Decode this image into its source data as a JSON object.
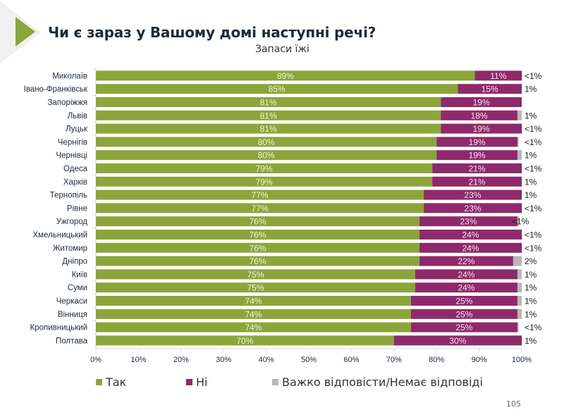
{
  "header": {
    "title": "Чи є зараз у Вашому домі наступні речі?",
    "subtitle": "Запаси їжі"
  },
  "page_number": "105",
  "colors": {
    "yes": "#8aa63a",
    "no": "#8e2a6b",
    "unsure": "#b8b8b8",
    "accent": "#8aa63a",
    "label_on_yes": "#f7f3cf",
    "label_on_no": "#f8dff0"
  },
  "chart_data": {
    "type": "bar",
    "orientation": "horizontal",
    "stacked": "100%",
    "title": "Чи є зараз у Вашому домі наступні речі?",
    "subtitle": "Запаси їжі",
    "xlabel": "",
    "ylabel": "",
    "xlim": [
      0,
      100
    ],
    "x_ticks": [
      "0%",
      "10%",
      "20%",
      "30%",
      "40%",
      "50%",
      "60%",
      "70%",
      "80%",
      "90%",
      "100%"
    ],
    "grid": false,
    "legend_position": "bottom",
    "categories": [
      "Миколаїв",
      "Івано-Франківськ",
      "Запоріжжя",
      "Львів",
      "Луцьк",
      "Чернігів",
      "Чернівці",
      "Одеса",
      "Харків",
      "Тернопіль",
      "Рівне",
      "Ужгород",
      "Хмельницький",
      "Житомир",
      "Дніпро",
      "Київ",
      "Суми",
      "Черкаси",
      "Вінниця",
      "Кропивницький",
      "Полтава"
    ],
    "series": [
      {
        "name": "Так",
        "values": [
          89,
          85,
          81,
          81,
          81,
          80,
          80,
          79,
          79,
          77,
          77,
          76,
          76,
          76,
          76,
          75,
          75,
          74,
          74,
          74,
          70
        ],
        "labels": [
          "89%",
          "85%",
          "81%",
          "81%",
          "81%",
          "80%",
          "80%",
          "79%",
          "79%",
          "77%",
          "77%",
          "76%",
          "76%",
          "76%",
          "76%",
          "75%",
          "75%",
          "74%",
          "74%",
          "74%",
          "70%"
        ]
      },
      {
        "name": "Ні",
        "values": [
          11,
          15,
          19,
          18,
          19,
          19,
          19,
          21,
          21,
          23,
          23,
          23,
          24,
          24,
          22,
          24,
          24,
          25,
          25,
          25,
          30
        ],
        "labels": [
          "11%",
          "15%",
          "19%",
          "18%",
          "19%",
          "19%",
          "19%",
          "21%",
          "21%",
          "23%",
          "23%",
          "23%",
          "24%",
          "24%",
          "22%",
          "24%",
          "24%",
          "25%",
          "25%",
          "25%",
          "30%"
        ]
      },
      {
        "name": "Важко відповісти/Немає відповіді",
        "values": [
          0.3,
          1,
          0,
          1,
          0.3,
          0.3,
          1,
          0.3,
          1,
          1,
          0.3,
          0.3,
          0.3,
          0.3,
          2,
          1,
          1,
          1,
          1,
          0.3,
          1
        ],
        "labels": [
          "<1%",
          "1%",
          "",
          "1%",
          "<1%",
          "<1%",
          "1%",
          "<1%",
          "1%",
          "1%",
          "<1%",
          "<1%",
          "<1%",
          "<1%",
          "2%",
          "1%",
          "1%",
          "1%",
          "1%",
          "<1%",
          "1%"
        ]
      }
    ]
  }
}
